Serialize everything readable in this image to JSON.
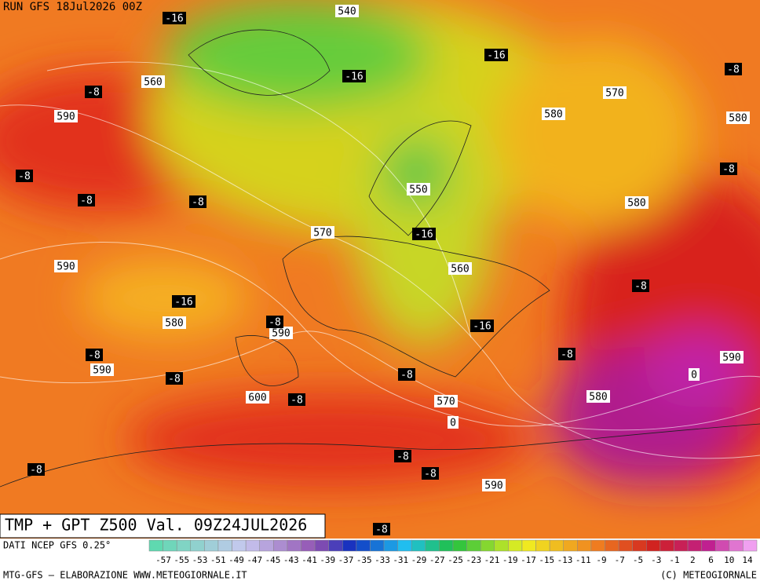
{
  "header": {
    "run": "RUN GFS 18Jul2026 00Z"
  },
  "map": {
    "white_labels": [
      540,
      560,
      590,
      570,
      580,
      580,
      550,
      580,
      570,
      590,
      560,
      580,
      590,
      590,
      600,
      570,
      580,
      590,
      0,
      0,
      590
    ],
    "black_labels": [
      -16,
      -16,
      -16,
      -8,
      -8,
      -8,
      -8,
      -8,
      -8,
      -16,
      -16,
      -8,
      -8,
      -16,
      -8,
      -8,
      -8,
      -8,
      -8,
      -8,
      -8,
      -8,
      -8
    ]
  },
  "title": "TMP + GPT Z500 Val. 09Z24JUL2026",
  "source": "DATI NCEP GFS 0.25°",
  "colorbar": {
    "labels": [
      -57,
      -55,
      -53,
      -51,
      -49,
      -47,
      -45,
      -43,
      -41,
      -39,
      -37,
      -35,
      -33,
      -31,
      -29,
      -27,
      -25,
      -23,
      -21,
      -19,
      -17,
      -15,
      -13,
      -11,
      -9,
      -7,
      -5,
      -3,
      -1,
      2,
      6,
      10,
      14
    ]
  },
  "footer": {
    "left": "MTG-GFS — ELABORAZIONE WWW.METEOGIORNALE.IT",
    "right": "(C) METEOGIORNALE"
  }
}
